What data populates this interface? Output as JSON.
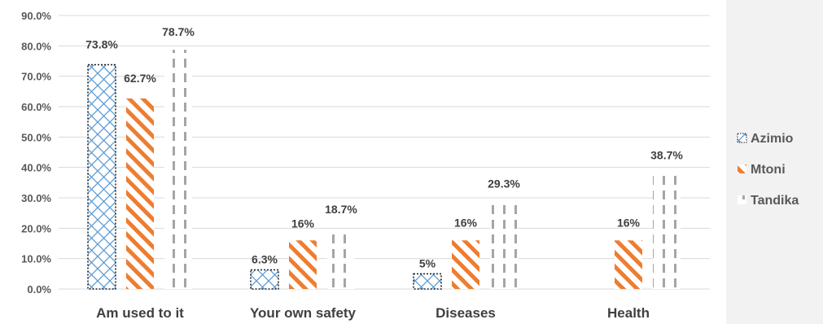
{
  "chart_data": {
    "type": "bar",
    "categories": [
      "Am used to it",
      "Your own safety",
      "Diseases",
      "Health"
    ],
    "series": [
      {
        "name": "Azimio",
        "values": [
          73.8,
          6.3,
          5,
          null
        ],
        "labels": [
          "73.8%",
          "6.3%",
          "5%",
          ""
        ],
        "color": "#5b9bd5",
        "pattern": "crosshatch-dotted-outline"
      },
      {
        "name": "Mtoni",
        "values": [
          62.7,
          16,
          16,
          16
        ],
        "labels": [
          "62.7%",
          "16%",
          "16%",
          "16%"
        ],
        "color": "#ed7d31",
        "pattern": "diagonal-stripes"
      },
      {
        "name": "Tandika",
        "values": [
          78.7,
          18.7,
          29.3,
          38.7
        ],
        "labels": [
          "78.7%",
          "18.7%",
          "29.3%",
          "38.7%"
        ],
        "color": "#a5a5a5",
        "pattern": "dashed-verticals"
      }
    ],
    "yticks": [
      "0.0%",
      "10.0%",
      "20.0%",
      "30.0%",
      "40.0%",
      "50.0%",
      "60.0%",
      "70.0%",
      "80.0%",
      "90.0%"
    ],
    "ylim": [
      0,
      90
    ],
    "grid": true,
    "legend_position": "right"
  }
}
